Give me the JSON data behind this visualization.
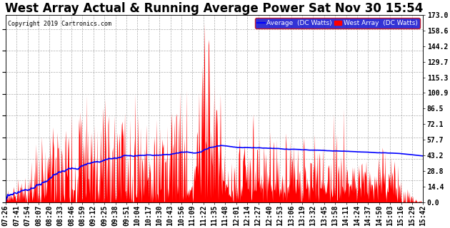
{
  "title": "West Array Actual & Running Average Power Sat Nov 30 15:54",
  "copyright": "Copyright 2019 Cartronics.com",
  "legend_labels": [
    "Average  (DC Watts)",
    "West Array  (DC Watts)"
  ],
  "legend_colors": [
    "#0000ff",
    "#ff0000"
  ],
  "yticks": [
    0.0,
    14.4,
    28.8,
    43.2,
    57.7,
    72.1,
    86.5,
    100.9,
    115.3,
    129.7,
    144.2,
    158.6,
    173.0
  ],
  "ymax": 173.0,
  "ymin": 0.0,
  "background_color": "#ffffff",
  "bar_color": "#ff0000",
  "line_color": "#0000ff",
  "grid_color": "#999999",
  "title_fontsize": 12,
  "tick_fontsize": 7,
  "time_labels": [
    "07:26",
    "07:41",
    "07:54",
    "08:07",
    "08:20",
    "08:33",
    "08:46",
    "08:59",
    "09:12",
    "09:25",
    "09:38",
    "09:51",
    "10:04",
    "10:17",
    "10:30",
    "10:43",
    "10:56",
    "11:09",
    "11:22",
    "11:35",
    "11:48",
    "12:01",
    "12:14",
    "12:27",
    "12:40",
    "12:53",
    "13:06",
    "13:19",
    "13:32",
    "13:45",
    "13:58",
    "14:11",
    "14:24",
    "14:37",
    "14:50",
    "15:03",
    "15:16",
    "15:29",
    "15:42"
  ]
}
